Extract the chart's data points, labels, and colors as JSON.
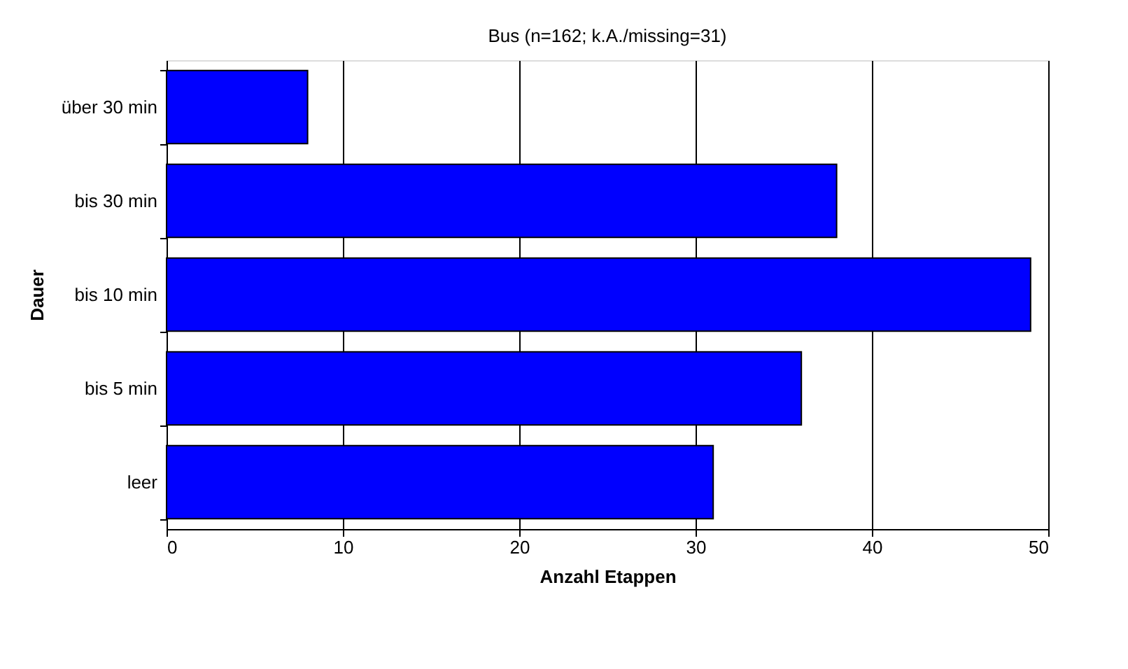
{
  "chart_data": {
    "type": "bar",
    "orientation": "horizontal",
    "title": "Bus (n=162; k.A./missing=31)",
    "xlabel": "Anzahl Etappen",
    "ylabel": "Dauer",
    "categories": [
      "über 30 min",
      "bis 30 min",
      "bis 10 min",
      "bis 5 min",
      "leer"
    ],
    "values": [
      8,
      38,
      49,
      36,
      31
    ],
    "color": "#0000ff",
    "xlim": [
      0,
      50
    ],
    "xticks": [
      0,
      10,
      20,
      30,
      40,
      50
    ],
    "grid": "x"
  }
}
